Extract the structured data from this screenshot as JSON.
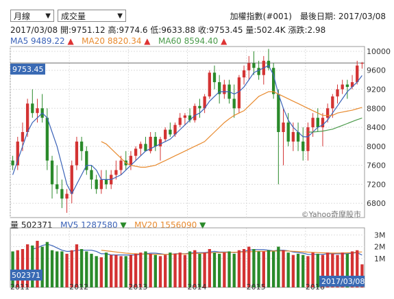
{
  "controls": {
    "period": "月線",
    "indicator": "成交量"
  },
  "header": {
    "title": "加權指數(#001)　最後日期: 2017/03/08"
  },
  "ohlc": {
    "date": "2017/03/08",
    "open_label": "開:",
    "open": "9751.12",
    "high_label": "高:",
    "high": "9774.6",
    "low_label": "低:",
    "low": "9633.88",
    "close_label": "收:",
    "close": "9753.45",
    "volume_label": "量:",
    "volume": "502.4K",
    "change_label": "漲跌:",
    "change": "2.98"
  },
  "ma": {
    "ma5_label": "MA5",
    "ma5": "9489.22",
    "ma20_label": "MA20",
    "ma20": "8820.34",
    "ma60_label": "MA60",
    "ma60": "8594.40",
    "arrow": "▲"
  },
  "volume": {
    "label": "量",
    "value": "502371",
    "mv5_label": "MV5",
    "mv5": "1287580",
    "mv20_label": "MV20",
    "mv20": "1556090",
    "arrow": "▼",
    "current_box": "502371",
    "date_box": "2017/03/08"
  },
  "price_box": "9753.45",
  "watermark": "©Yahoo奇摩股市",
  "colors": {
    "up": "#d33333",
    "down": "#2a8a2a",
    "ma5": "#3a62b8",
    "ma20": "#e88a2e",
    "ma60": "#4a9a4a",
    "box": "#3a6ab4"
  },
  "chart_data": {
    "type": "candlestick",
    "ylim": [
      6500,
      10100
    ],
    "yticks": [
      6800,
      7200,
      7600,
      8000,
      8400,
      8800,
      9200,
      9600,
      10000
    ],
    "vol_ylim": [
      0,
      3600000
    ],
    "vol_ticks": [
      {
        "v": 1000000,
        "label": "1M"
      },
      {
        "v": 2000000,
        "label": "2M"
      },
      {
        "v": 3000000,
        "label": "3M"
      }
    ],
    "xticks": [
      {
        "i": 0,
        "label": "2011"
      },
      {
        "i": 12,
        "label": "2012"
      },
      {
        "i": 24,
        "label": "2013"
      },
      {
        "i": 36,
        "label": "2014"
      },
      {
        "i": 48,
        "label": "2015"
      },
      {
        "i": 60,
        "label": "2016"
      }
    ],
    "candles": [
      [
        7700,
        7800,
        7500,
        7600
      ],
      [
        7600,
        8200,
        7500,
        8100
      ],
      [
        8100,
        8500,
        7900,
        8300
      ],
      [
        8300,
        9000,
        8200,
        8900
      ],
      [
        8900,
        9200,
        8600,
        8700
      ],
      [
        8700,
        9000,
        8500,
        8800
      ],
      [
        8800,
        9100,
        8500,
        8600
      ],
      [
        8600,
        8800,
        7500,
        7700
      ],
      [
        7700,
        7800,
        6900,
        7200
      ],
      [
        7200,
        7600,
        7000,
        7100
      ],
      [
        7100,
        7300,
        6700,
        6900
      ],
      [
        6900,
        7100,
        6600,
        7000
      ],
      [
        7000,
        7700,
        6800,
        7600
      ],
      [
        7600,
        8200,
        7500,
        8100
      ],
      [
        8100,
        8200,
        7700,
        7900
      ],
      [
        7900,
        8000,
        7400,
        7500
      ],
      [
        7500,
        7600,
        7100,
        7300
      ],
      [
        7300,
        7400,
        7000,
        7100
      ],
      [
        7100,
        7500,
        7000,
        7300
      ],
      [
        7300,
        7500,
        7100,
        7200
      ],
      [
        7200,
        7500,
        7100,
        7400
      ],
      [
        7400,
        7700,
        7300,
        7500
      ],
      [
        7500,
        7800,
        7400,
        7700
      ],
      [
        7700,
        7900,
        7500,
        7600
      ],
      [
        7600,
        7900,
        7500,
        7800
      ],
      [
        7800,
        8000,
        7700,
        7950
      ],
      [
        7950,
        8100,
        7800,
        8050
      ],
      [
        8050,
        8200,
        7900,
        7900
      ],
      [
        7900,
        8300,
        7850,
        8200
      ],
      [
        8200,
        8300,
        7900,
        8000
      ],
      [
        8000,
        8200,
        7700,
        8150
      ],
      [
        8150,
        8400,
        8100,
        8350
      ],
      [
        8350,
        8500,
        8200,
        8250
      ],
      [
        8250,
        8500,
        8200,
        8450
      ],
      [
        8450,
        8700,
        8400,
        8600
      ],
      [
        8600,
        8700,
        8450,
        8650
      ],
      [
        8650,
        8800,
        8500,
        8550
      ],
      [
        8550,
        8900,
        8500,
        8850
      ],
      [
        8850,
        9000,
        8600,
        8800
      ],
      [
        8800,
        9100,
        8700,
        9050
      ],
      [
        9050,
        9600,
        9000,
        9550
      ],
      [
        9550,
        9700,
        9200,
        9350
      ],
      [
        9350,
        9500,
        8900,
        9100
      ],
      [
        9100,
        9400,
        9000,
        9300
      ],
      [
        9300,
        9400,
        8900,
        9000
      ],
      [
        9000,
        9300,
        8600,
        8800
      ],
      [
        8800,
        9500,
        8700,
        9450
      ],
      [
        9450,
        9700,
        9300,
        9600
      ],
      [
        9600,
        9900,
        9400,
        9750
      ],
      [
        9750,
        10000,
        9500,
        9650
      ],
      [
        9650,
        9800,
        9400,
        9500
      ],
      [
        9500,
        9900,
        9300,
        9800
      ],
      [
        9800,
        10050,
        9600,
        9650
      ],
      [
        9650,
        9750,
        9000,
        9100
      ],
      [
        9100,
        9200,
        7200,
        8300
      ],
      [
        8300,
        8800,
        7600,
        8500
      ],
      [
        8500,
        8700,
        8000,
        8100
      ],
      [
        8100,
        8500,
        7900,
        8300
      ],
      [
        8300,
        8500,
        7900,
        8100
      ],
      [
        8100,
        8400,
        7700,
        7900
      ],
      [
        7900,
        8500,
        7700,
        8400
      ],
      [
        8400,
        8700,
        8200,
        8600
      ],
      [
        8600,
        8800,
        8300,
        8400
      ],
      [
        8400,
        8700,
        8000,
        8600
      ],
      [
        8600,
        8900,
        8500,
        8800
      ],
      [
        8800,
        9100,
        8600,
        9050
      ],
      [
        9050,
        9300,
        8900,
        9200
      ],
      [
        9200,
        9400,
        9100,
        9300
      ],
      [
        9300,
        9400,
        9000,
        9250
      ],
      [
        9250,
        9500,
        9200,
        9350
      ],
      [
        9350,
        9800,
        9300,
        9700
      ],
      [
        9751.12,
        9774.6,
        9633.88,
        9753.45
      ]
    ],
    "volumes": [
      1600000,
      1700000,
      1800000,
      2200000,
      2100000,
      2500000,
      2000000,
      2400000,
      1700000,
      1600000,
      1600000,
      1400000,
      1700000,
      2200000,
      1800000,
      1600000,
      1400000,
      1200000,
      1100000,
      1500000,
      1300000,
      1300000,
      1200000,
      1200000,
      1300000,
      1400000,
      1500000,
      1600000,
      1400000,
      1300000,
      1200000,
      1300000,
      1500000,
      1400000,
      1500000,
      1300000,
      1600000,
      1700000,
      1400000,
      1500000,
      1800000,
      1500000,
      1400000,
      1500000,
      1600000,
      1400000,
      1700000,
      1800000,
      2000000,
      1800000,
      1600000,
      1600000,
      1700000,
      1600000,
      2000000,
      1700000,
      1500000,
      1300000,
      1400000,
      1300000,
      1200000,
      1500000,
      1400000,
      1300000,
      1500000,
      1400000,
      1300000,
      1500000,
      1400000,
      1600000,
      1700000,
      502371
    ],
    "ma5_points": [
      7400,
      7700,
      8000,
      8300,
      8500,
      8600,
      8700,
      8600,
      8300,
      8000,
      7600,
      7200,
      7000,
      7200,
      7400,
      7600,
      7600,
      7500,
      7300,
      7300,
      7300,
      7350,
      7400,
      7500,
      7600,
      7700,
      7800,
      7900,
      7950,
      8000,
      8050,
      8100,
      8150,
      8250,
      8350,
      8450,
      8550,
      8650,
      8700,
      8800,
      8950,
      9050,
      9150,
      9150,
      9150,
      9100,
      9150,
      9250,
      9400,
      9550,
      9600,
      9650,
      9700,
      9500,
      9100,
      8800,
      8550,
      8400,
      8300,
      8200,
      8200,
      8300,
      8400,
      8450,
      8550,
      8700,
      8850,
      9000,
      9150,
      9250,
      9350,
      9489
    ],
    "ma20_points": [
      null,
      null,
      null,
      null,
      null,
      null,
      null,
      null,
      null,
      null,
      null,
      null,
      null,
      null,
      null,
      null,
      null,
      null,
      8100,
      8050,
      7950,
      7850,
      7750,
      7650,
      7600,
      7580,
      7560,
      7560,
      7580,
      7600,
      7650,
      7700,
      7750,
      7800,
      7850,
      7900,
      7950,
      8000,
      8050,
      8100,
      8200,
      8300,
      8400,
      8500,
      8580,
      8650,
      8700,
      8750,
      8850,
      8950,
      9050,
      9100,
      9150,
      9150,
      9100,
      9050,
      9000,
      8950,
      8900,
      8850,
      8800,
      8750,
      8700,
      8650,
      8650,
      8650,
      8700,
      8720,
      8740,
      8760,
      8790,
      8820
    ],
    "ma60_points": [
      null,
      null,
      null,
      null,
      null,
      null,
      null,
      null,
      null,
      null,
      null,
      null,
      null,
      null,
      null,
      null,
      null,
      null,
      null,
      null,
      null,
      null,
      null,
      null,
      null,
      null,
      null,
      null,
      null,
      null,
      null,
      null,
      null,
      null,
      null,
      null,
      null,
      null,
      null,
      null,
      null,
      null,
      null,
      null,
      null,
      null,
      null,
      null,
      null,
      null,
      null,
      null,
      null,
      null,
      null,
      null,
      null,
      null,
      null,
      null,
      8300,
      8300,
      8310,
      8320,
      8340,
      8360,
      8400,
      8440,
      8480,
      8520,
      8560,
      8594
    ],
    "mv5_points": [
      null,
      null,
      null,
      null,
      1800000,
      1900000,
      2100000,
      2200000,
      2100000,
      1900000,
      1700000,
      1600000,
      1600000,
      1700000,
      1700000,
      1700000,
      1700000,
      1600000,
      1400000,
      1400000,
      1300000,
      1300000,
      1300000,
      1300000,
      1300000,
      1300000,
      1350000,
      1400000,
      1450000,
      1450000,
      1400000,
      1350000,
      1350000,
      1400000,
      1400000,
      1400000,
      1450000,
      1500000,
      1500000,
      1500000,
      1550000,
      1600000,
      1550000,
      1550000,
      1550000,
      1500000,
      1550000,
      1600000,
      1700000,
      1750000,
      1750000,
      1750000,
      1700000,
      1650000,
      1700000,
      1700000,
      1650000,
      1550000,
      1500000,
      1450000,
      1350000,
      1350000,
      1350000,
      1350000,
      1400000,
      1400000,
      1400000,
      1400000,
      1400000,
      1450000,
      1500000,
      1287580
    ],
    "mv20_points": [
      null,
      null,
      null,
      null,
      null,
      null,
      null,
      null,
      null,
      null,
      null,
      null,
      null,
      null,
      null,
      null,
      null,
      null,
      1700000,
      1650000,
      1600000,
      1550000,
      1500000,
      1450000,
      1420000,
      1400000,
      1380000,
      1370000,
      1360000,
      1350000,
      1350000,
      1350000,
      1360000,
      1370000,
      1380000,
      1390000,
      1400000,
      1420000,
      1440000,
      1450000,
      1470000,
      1490000,
      1500000,
      1510000,
      1520000,
      1530000,
      1540000,
      1550000,
      1570000,
      1590000,
      1600000,
      1610000,
      1620000,
      1630000,
      1640000,
      1640000,
      1630000,
      1610000,
      1590000,
      1570000,
      1540000,
      1520000,
      1500000,
      1480000,
      1470000,
      1460000,
      1460000,
      1470000,
      1480000,
      1500000,
      1530000,
      1556090
    ]
  }
}
